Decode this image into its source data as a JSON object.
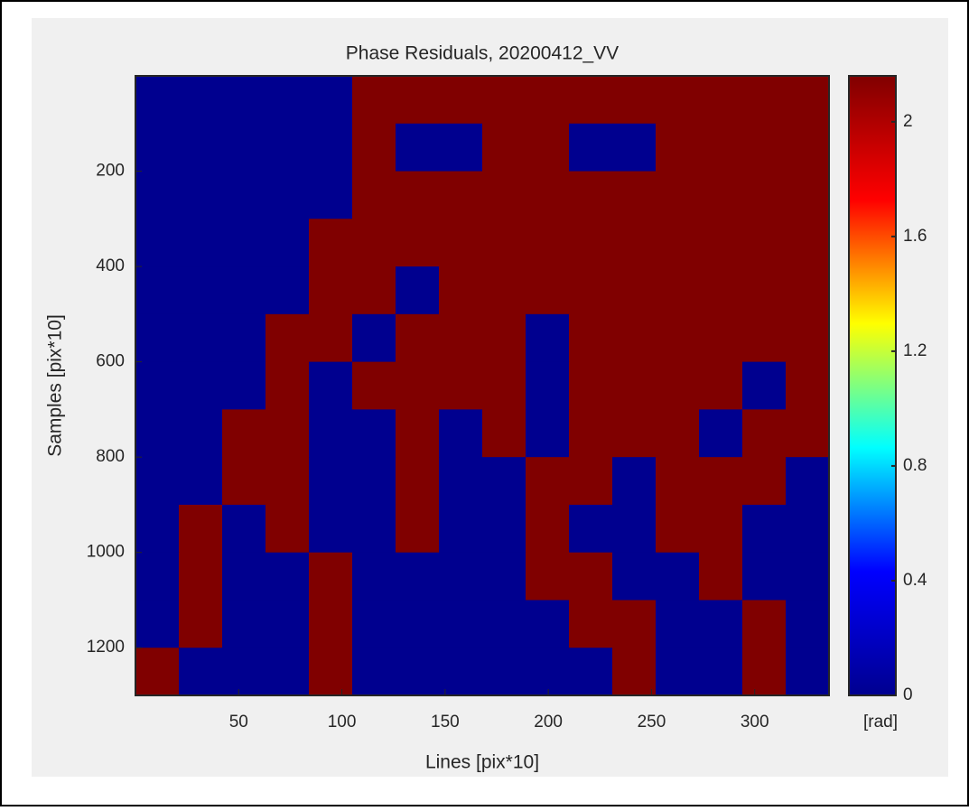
{
  "chart_data": {
    "type": "heatmap",
    "title": "Phase Residuals, 20200412_VV",
    "x_label": "Lines [pix*10]",
    "y_label": "Samples [pix*10]",
    "colorbar_label": "[rad]",
    "xbins": [
      0,
      21,
      42,
      63,
      84,
      105,
      126,
      147,
      168,
      189,
      210,
      231,
      252,
      273,
      294,
      315,
      336
    ],
    "ybins": [
      0,
      100,
      200,
      300,
      400,
      500,
      600,
      700,
      800,
      900,
      1000,
      1100,
      1200,
      1300
    ],
    "z": [
      [
        0,
        0,
        0,
        0,
        0,
        2.16,
        2.16,
        2.16,
        2.16,
        2.16,
        2.16,
        2.16,
        2.16,
        2.16,
        2.16,
        2.16
      ],
      [
        0,
        0,
        0,
        0,
        0,
        2.16,
        0,
        0,
        2.16,
        2.16,
        0,
        0,
        2.16,
        2.16,
        2.16,
        2.16
      ],
      [
        0,
        0,
        0,
        0,
        0,
        2.16,
        2.16,
        2.16,
        2.16,
        2.16,
        2.16,
        2.16,
        2.16,
        2.16,
        2.16,
        2.16
      ],
      [
        0,
        0,
        0,
        0,
        2.16,
        2.16,
        2.16,
        2.16,
        2.16,
        2.16,
        2.16,
        2.16,
        2.16,
        2.16,
        2.16,
        2.16
      ],
      [
        0,
        0,
        0,
        0,
        2.16,
        2.16,
        0,
        2.16,
        2.16,
        2.16,
        2.16,
        2.16,
        2.16,
        2.16,
        2.16,
        2.16
      ],
      [
        0,
        0,
        0,
        2.16,
        2.16,
        0,
        2.16,
        2.16,
        2.16,
        0,
        2.16,
        2.16,
        2.16,
        2.16,
        2.16,
        2.16
      ],
      [
        0,
        0,
        0,
        2.16,
        0,
        2.16,
        2.16,
        2.16,
        2.16,
        0,
        2.16,
        2.16,
        2.16,
        2.16,
        0,
        2.16
      ],
      [
        0,
        0,
        2.16,
        2.16,
        0,
        0,
        2.16,
        0,
        2.16,
        0,
        2.16,
        2.16,
        2.16,
        0,
        2.16,
        2.16
      ],
      [
        0,
        0,
        2.16,
        2.16,
        0,
        0,
        2.16,
        0,
        0,
        2.16,
        2.16,
        0,
        2.16,
        2.16,
        2.16,
        0
      ],
      [
        0,
        2.16,
        0,
        2.16,
        0,
        0,
        2.16,
        0,
        0,
        2.16,
        0,
        0,
        2.16,
        2.16,
        0,
        0
      ],
      [
        0,
        2.16,
        0,
        0,
        2.16,
        0,
        0,
        0,
        0,
        2.16,
        2.16,
        0,
        0,
        2.16,
        0,
        0
      ],
      [
        0,
        2.16,
        0,
        0,
        2.16,
        0,
        0,
        0,
        0,
        0,
        2.16,
        2.16,
        0,
        0,
        2.16,
        0
      ],
      [
        2.16,
        0,
        0,
        0,
        2.16,
        0,
        0,
        0,
        0,
        0,
        0,
        2.16,
        0,
        0,
        2.16,
        0
      ]
    ],
    "xlim": [
      0,
      336
    ],
    "ylim": [
      0,
      1300
    ],
    "y_reversed": true,
    "clim": [
      0,
      2.16
    ],
    "xticks": [
      50,
      100,
      150,
      200,
      250,
      300
    ],
    "yticks": [
      200,
      400,
      600,
      800,
      1000,
      1200
    ],
    "cticks": [
      0,
      0.4,
      0.8,
      1.2,
      1.6,
      2
    ],
    "colormap": [
      "#00008f",
      "#0000ff",
      "#00ffff",
      "#ffff00",
      "#ff0000",
      "#800000"
    ]
  }
}
